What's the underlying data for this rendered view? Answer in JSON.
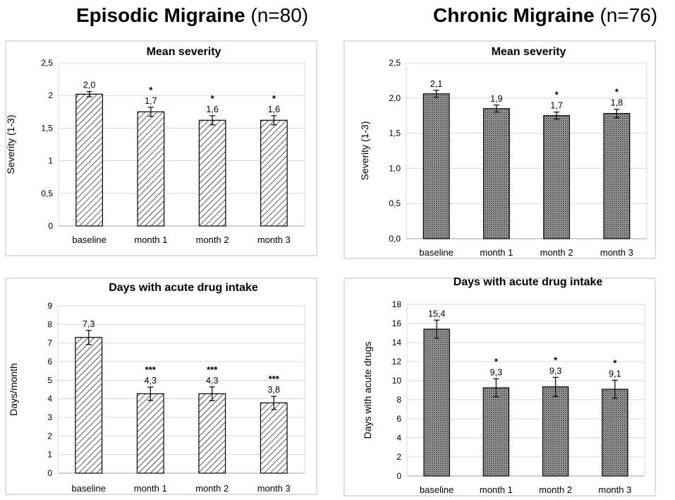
{
  "headers": {
    "left": {
      "title": "Episodic Migraine",
      "n": "(n=80)"
    },
    "right": {
      "title": "Chronic Migraine",
      "n": "(n=76)"
    }
  },
  "colors": {
    "bar_fill": "#ffffff",
    "bar_stroke": "#000000",
    "grid": "#d9d9d9",
    "axis_box": "#bfbfbf"
  },
  "chart_data": [
    {
      "id": "ems",
      "type": "bar",
      "title": "Mean severity",
      "ylabel": "Severity (1-3)",
      "xlabel": "",
      "categories": [
        "baseline",
        "month 1",
        "month 2",
        "month 3"
      ],
      "values": [
        2.02,
        1.75,
        1.62,
        1.62
      ],
      "errors": [
        0.04,
        0.07,
        0.07,
        0.07
      ],
      "data_labels": [
        "2,0",
        "1,7",
        "1,6",
        "1,6"
      ],
      "significance": [
        "",
        "*",
        "*",
        "*"
      ],
      "ylim": [
        0,
        2.5
      ],
      "yticks": [
        0,
        0.5,
        1,
        1.5,
        2,
        2.5
      ],
      "ytick_labels": [
        "0",
        "0,5",
        "1",
        "1,5",
        "2",
        "2,5"
      ],
      "pattern": "hatch",
      "grid": true
    },
    {
      "id": "cms",
      "type": "bar",
      "title": "Mean severity",
      "ylabel": "Severity (1-3)",
      "xlabel": "",
      "categories": [
        "baseline",
        "month 1",
        "month 2",
        "month 3"
      ],
      "values": [
        2.06,
        1.85,
        1.75,
        1.78
      ],
      "errors": [
        0.05,
        0.05,
        0.05,
        0.06
      ],
      "data_labels": [
        "2,1",
        "1,9",
        "1,7",
        "1,8"
      ],
      "significance": [
        "",
        "",
        "*",
        "*"
      ],
      "ylim": [
        0,
        2.5
      ],
      "yticks": [
        0,
        0.5,
        1,
        1.5,
        2,
        2.5
      ],
      "ytick_labels": [
        "0,0",
        "0,5",
        "1,0",
        "1,5",
        "2,0",
        "2,5"
      ],
      "pattern": "dots",
      "grid": true
    },
    {
      "id": "emd",
      "type": "bar",
      "title": "Days with acute drug intake",
      "ylabel": "Days/month",
      "xlabel": "",
      "categories": [
        "baseline",
        "month 1",
        "month 2",
        "month 3"
      ],
      "values": [
        7.3,
        4.27,
        4.27,
        3.78
      ],
      "errors": [
        0.38,
        0.36,
        0.37,
        0.35
      ],
      "data_labels": [
        "7,3",
        "4,3",
        "4,3",
        "3,8"
      ],
      "significance": [
        "",
        "***",
        "***",
        "***"
      ],
      "ylim": [
        0,
        9
      ],
      "yticks": [
        0,
        1,
        2,
        3,
        4,
        5,
        6,
        7,
        8,
        9
      ],
      "ytick_labels": [
        "0",
        "1",
        "2",
        "3",
        "4",
        "5",
        "6",
        "7",
        "8",
        "9"
      ],
      "pattern": "hatch",
      "grid": true
    },
    {
      "id": "cmd",
      "type": "bar",
      "title": "Days with acute drug intake",
      "ylabel": "Days with acute drugs",
      "xlabel": "",
      "categories": [
        "baseline",
        "month 1",
        "month 2",
        "month 3"
      ],
      "values": [
        15.4,
        9.25,
        9.35,
        9.1
      ],
      "errors": [
        0.95,
        0.95,
        1.0,
        0.95
      ],
      "data_labels": [
        "15,4",
        "9,3",
        "9,3",
        "9,1"
      ],
      "significance": [
        "",
        "*",
        "*",
        "*"
      ],
      "ylim": [
        0,
        18
      ],
      "yticks": [
        0,
        2,
        4,
        6,
        8,
        10,
        12,
        14,
        16,
        18
      ],
      "ytick_labels": [
        "0",
        "2",
        "4",
        "6",
        "8",
        "10",
        "12",
        "14",
        "16",
        "18"
      ],
      "pattern": "dots",
      "grid": true
    }
  ]
}
